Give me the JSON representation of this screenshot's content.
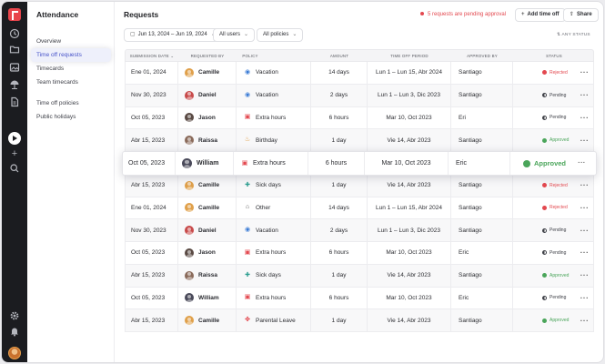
{
  "nav": {
    "title": "Attendance",
    "items": [
      "Overview",
      "Time off requests",
      "Timecards",
      "Team timecards",
      "Time off policies",
      "Public holidays"
    ],
    "active": "Time off requests"
  },
  "header": {
    "title": "Requests",
    "alert": "5 requests are pending approval",
    "add_label": "Add time off",
    "share_label": "Share"
  },
  "filters": {
    "date_range": "Jun 13, 2024 – Jun 19, 2024",
    "users": "All users",
    "policies": "All policies",
    "status": "ANY STATUS"
  },
  "columns": {
    "date": "Submission date",
    "user": "Requested by",
    "policy": "Policy",
    "amount": "Amount",
    "period": "Time off period",
    "approver": "Approved by",
    "status": "Status"
  },
  "colors": {
    "accent": "#4753c9",
    "rejected": "#e3484f",
    "approved": "#4aa55a",
    "pending": "#3e4047"
  },
  "rows": [
    {
      "date": "Ene 01, 2024",
      "user": "Camille",
      "avatar": "#e0a04a",
      "policy": "Vacation",
      "icon": "globe-icon",
      "amount": "14 days",
      "period": "Lun 1 – Lun 15, Abr 2024",
      "approver": "Santiago",
      "status": "Rejected",
      "status_kind": "rejected"
    },
    {
      "date": "Nov 30, 2023",
      "user": "Daniel",
      "avatar": "#c84a4a",
      "policy": "Vacation",
      "icon": "globe-icon",
      "amount": "2 days",
      "period": "Lun 1 – Lun 3, Dic 2023",
      "approver": "Santiago",
      "status": "Pending",
      "status_kind": "pending"
    },
    {
      "date": "Oct 05, 2023",
      "user": "Jason",
      "avatar": "#5a4a44",
      "policy": "Extra hours",
      "icon": "clock-card-icon",
      "amount": "6 hours",
      "period": "Mar 10, Oct 2023",
      "approver": "Eri",
      "status": "Pending",
      "status_kind": "pending"
    },
    {
      "date": "Abr 15, 2023",
      "user": "Raissa",
      "avatar": "#8a6a5a",
      "policy": "Birthday",
      "icon": "cake-icon",
      "amount": "1 day",
      "period": "Vie 14, Abr 2023",
      "approver": "Santiago",
      "status": "Approved",
      "status_kind": "approved"
    },
    {
      "date": "Oct 05, 2023",
      "user": "William",
      "avatar": "#4a4a5a",
      "policy": "Extra hours",
      "icon": "clock-card-icon",
      "amount": "6 hours",
      "period": "Mar 10, Oct 2023",
      "approver": "Eric",
      "status": "Approved",
      "status_kind": "approved"
    },
    {
      "date": "Abr 15, 2023",
      "user": "Camille",
      "avatar": "#e0a04a",
      "policy": "Sick days",
      "icon": "medkit-icon",
      "amount": "1 day",
      "period": "Vie 14, Abr 2023",
      "approver": "Santiago",
      "status": "Rejected",
      "status_kind": "rejected"
    },
    {
      "date": "Ene 01, 2024",
      "user": "Camille",
      "avatar": "#e0a04a",
      "policy": "Other",
      "icon": "home-icon",
      "amount": "14 days",
      "period": "Lun 1 – Lun 15, Abr 2024",
      "approver": "Santiago",
      "status": "Rejected",
      "status_kind": "rejected"
    },
    {
      "date": "Nov 30, 2023",
      "user": "Daniel",
      "avatar": "#c84a4a",
      "policy": "Vacation",
      "icon": "globe-icon",
      "amount": "2 days",
      "period": "Lun 1 – Lun 3, Dic 2023",
      "approver": "Santiago",
      "status": "Pending",
      "status_kind": "pending"
    },
    {
      "date": "Oct 05, 2023",
      "user": "Jason",
      "avatar": "#5a4a44",
      "policy": "Extra hours",
      "icon": "clock-card-icon",
      "amount": "6 hours",
      "period": "Mar 10, Oct 2023",
      "approver": "Eric",
      "status": "Pending",
      "status_kind": "pending"
    },
    {
      "date": "Abr 15, 2023",
      "user": "Raissa",
      "avatar": "#8a6a5a",
      "policy": "Sick days",
      "icon": "medkit-icon",
      "amount": "1 day",
      "period": "Vie 14, Abr 2023",
      "approver": "Santiago",
      "status": "Approved",
      "status_kind": "approved"
    },
    {
      "date": "Oct 05, 2023",
      "user": "William",
      "avatar": "#4a4a5a",
      "policy": "Extra hours",
      "icon": "clock-card-icon",
      "amount": "6 hours",
      "period": "Mar 10, Oct 2023",
      "approver": "Eric",
      "status": "Pending",
      "status_kind": "pending"
    },
    {
      "date": "Abr 15, 2023",
      "user": "Camille",
      "avatar": "#e0a04a",
      "policy": "Parental Leave",
      "icon": "baby-icon",
      "amount": "1 day",
      "period": "Vie 14, Abr 2023",
      "approver": "Santiago",
      "status": "Approved",
      "status_kind": "approved"
    }
  ],
  "highlighted_row": 4
}
